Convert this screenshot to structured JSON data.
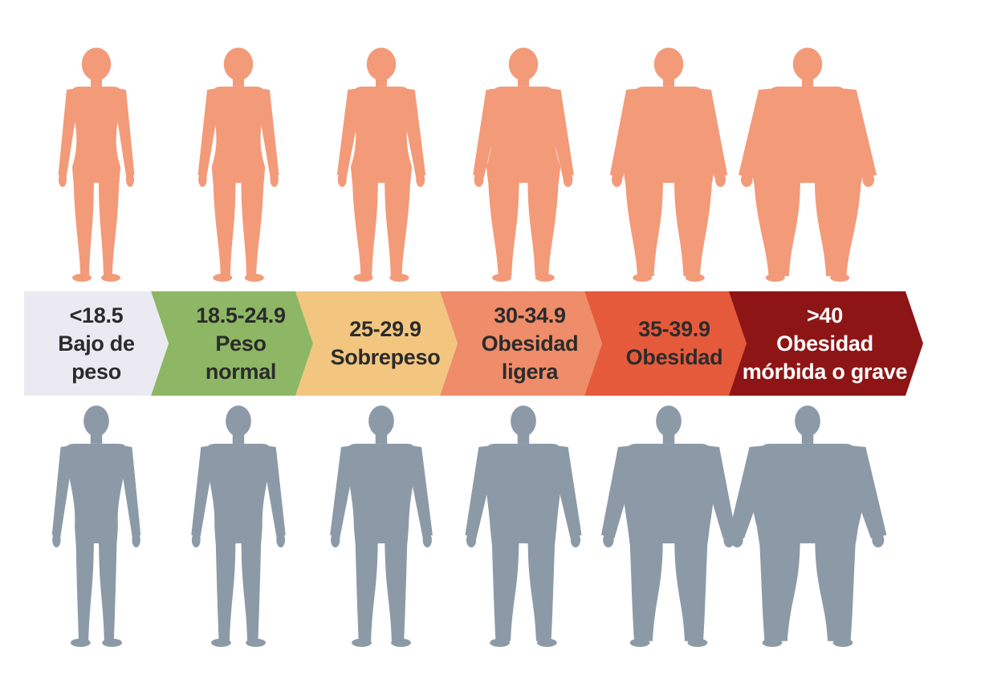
{
  "colors": {
    "female_figure": "#f39a79",
    "male_figure": "#8c9aa7",
    "text_dark": "#2b2b2b",
    "text_light": "#ffffff"
  },
  "categories": [
    {
      "range": "<18.5",
      "lines": [
        "Bajo de",
        "peso"
      ],
      "color": "#ebeaf3",
      "text_style": "dark"
    },
    {
      "range": "18.5-24.9",
      "lines": [
        "Peso",
        "normal"
      ],
      "color": "#8db764",
      "text_style": "dark"
    },
    {
      "range": "25-29.9",
      "lines": [
        "Sobrepeso"
      ],
      "color": "#f3c680",
      "text_style": "dark"
    },
    {
      "range": "30-34.9",
      "lines": [
        "Obesidad",
        "ligera"
      ],
      "color": "#ef8c69",
      "text_style": "dark"
    },
    {
      "range": "35-39.9",
      "lines": [
        "Obesidad"
      ],
      "color": "#e55a3a",
      "text_style": "dark"
    },
    {
      "range": ">40",
      "lines": [
        "Obesidad",
        "mórbida o grave"
      ],
      "color": "#8e1515",
      "text_style": "light"
    }
  ],
  "icons": {
    "female": "female-silhouette-icon",
    "male": "male-silhouette-icon"
  }
}
